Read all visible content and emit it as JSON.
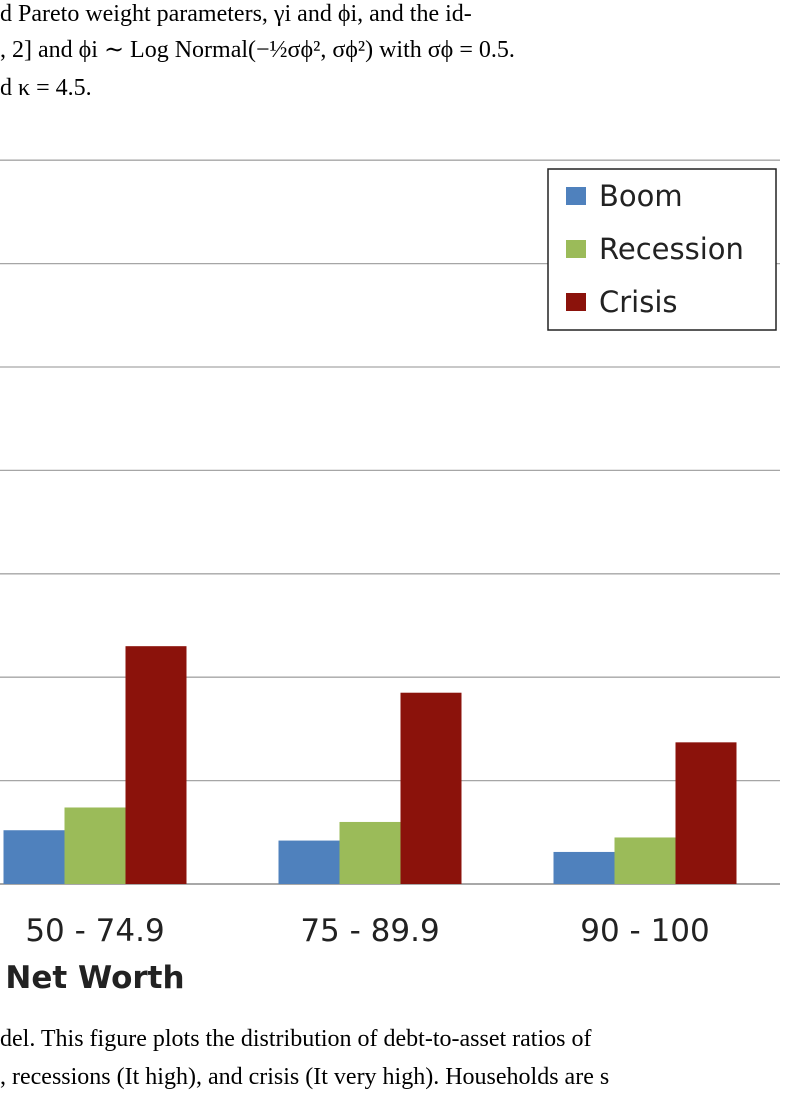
{
  "text_top": {
    "line1": "d Pareto weight parameters, γi and ϕi, and the id-",
    "line2": ", 2] and ϕi ∼ Log Normal(−½σϕ², σϕ²) with σϕ = 0.5.",
    "line3": "d κ = 4.5."
  },
  "chart_data": {
    "type": "bar",
    "categories": [
      "50 - 74.9",
      "75 - 89.9",
      "90 - 100"
    ],
    "series": [
      {
        "name": "Boom",
        "values": [
          0.52,
          0.42,
          0.31
        ],
        "color": "#4f81bd"
      },
      {
        "name": "Recession",
        "values": [
          0.74,
          0.6,
          0.45
        ],
        "color": "#9bbb59"
      },
      {
        "name": "Crisis",
        "values": [
          2.3,
          1.85,
          1.37
        ],
        "color": "#8b120b"
      }
    ],
    "xlabel": "Net Worth",
    "ylabel": "",
    "ylim": [
      0,
      7
    ],
    "grid": true,
    "legend": "top-right"
  },
  "text_bottom": {
    "line1": "del. This figure plots the distribution of debt-to-asset ratios of",
    "line2": ", recessions (It high), and crisis (It very high). Households are s"
  }
}
